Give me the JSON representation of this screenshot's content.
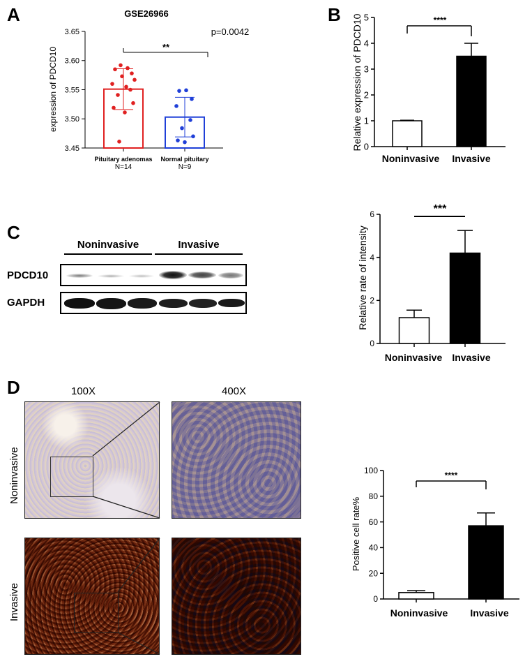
{
  "panels": {
    "A": "A",
    "B": "B",
    "C": "C",
    "D": "D"
  },
  "chart_data": [
    {
      "id": "A",
      "type": "bar",
      "title": "GSE26966",
      "ylabel": "expression of PDCD10",
      "ylim": [
        3.45,
        3.65
      ],
      "yticks": [
        3.45,
        3.5,
        3.55,
        3.6,
        3.65
      ],
      "ytick_labels": [
        "3.45",
        "3.50",
        "3.55",
        "3.60",
        "3.65"
      ],
      "categories": [
        "Pituitary adenomas",
        "Normal pituitary"
      ],
      "sublabels": [
        "N=14",
        "N=9"
      ],
      "values": [
        3.551,
        3.503
      ],
      "error": [
        0.035,
        0.034
      ],
      "bar_colors": [
        "#e02020",
        "#1f3fd8"
      ],
      "points": [
        [
          3.592,
          3.587,
          3.585,
          3.578,
          3.573,
          3.567,
          3.56,
          3.555,
          3.55,
          3.541,
          3.527,
          3.519,
          3.511,
          3.461
        ],
        [
          3.549,
          3.548,
          3.534,
          3.522,
          3.498,
          3.484,
          3.47,
          3.463,
          3.46
        ]
      ],
      "annotations": {
        "significance": "**",
        "pvalue": "p=0.0042"
      }
    },
    {
      "id": "B",
      "type": "bar",
      "ylabel": "Relative expression of PDCD10",
      "ylim": [
        0,
        5
      ],
      "yticks": [
        0,
        1,
        2,
        3,
        4,
        5
      ],
      "ytick_labels": [
        "0",
        "1",
        "2",
        "3",
        "4",
        "5"
      ],
      "categories": [
        "Noninvasive",
        "Invasive"
      ],
      "values": [
        1.0,
        3.5
      ],
      "error": [
        0.02,
        0.5
      ],
      "bar_fill": [
        "#ffffff",
        "#000000"
      ],
      "annotations": {
        "significance": "****"
      }
    },
    {
      "id": "C",
      "type": "bar",
      "ylabel": "Relative rate of intensity",
      "ylim": [
        0,
        6
      ],
      "yticks": [
        0,
        2,
        4,
        6
      ],
      "ytick_labels": [
        "0",
        "2",
        "4",
        "6"
      ],
      "categories": [
        "Noninvasive",
        "Invasive"
      ],
      "values": [
        1.2,
        4.2
      ],
      "error": [
        0.35,
        1.05
      ],
      "bar_fill": [
        "#ffffff",
        "#000000"
      ],
      "annotations": {
        "significance": "***"
      }
    },
    {
      "id": "D",
      "type": "bar",
      "ylabel": "Positive cell rate%",
      "ylim": [
        0,
        100
      ],
      "yticks": [
        0,
        20,
        40,
        60,
        80,
        100
      ],
      "ytick_labels": [
        "0",
        "20",
        "40",
        "60",
        "80",
        "100"
      ],
      "categories": [
        "Noninvasive",
        "Invasive"
      ],
      "values": [
        5,
        57
      ],
      "error": [
        1.5,
        10
      ],
      "bar_fill": [
        "#ffffff",
        "#000000"
      ],
      "annotations": {
        "significance": "****"
      }
    }
  ],
  "blot": {
    "groups": [
      "Noninvasive",
      "Invasive"
    ],
    "rows": [
      "PDCD10",
      "GAPDH"
    ]
  },
  "ihc": {
    "columns": [
      "100X",
      "400X"
    ],
    "rows": [
      "Noninvasive",
      "Invasive"
    ]
  }
}
